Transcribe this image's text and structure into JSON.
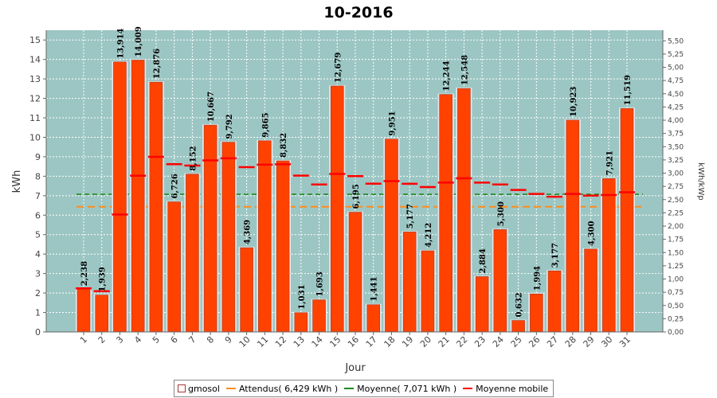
{
  "chart_data": {
    "type": "bar",
    "title": "10-2016",
    "xlabel": "Jour",
    "ylabel": "kWh",
    "y2label": "kWh/kWp",
    "ylim": [
      0,
      15.5
    ],
    "y2lim": [
      0,
      5.7
    ],
    "yticks": [
      "0",
      "1",
      "2",
      "3",
      "4",
      "5",
      "6",
      "7",
      "8",
      "9",
      "10",
      "11",
      "12",
      "13",
      "14",
      "15"
    ],
    "y2ticks": [
      "0,00",
      "0,25",
      "0,50",
      "0,75",
      "1,00",
      "1,25",
      "1,50",
      "1,75",
      "2,00",
      "2,25",
      "2,50",
      "2,75",
      "3,00",
      "3,25",
      "3,50",
      "3,75",
      "4,00",
      "4,25",
      "4,50",
      "4,75",
      "5,00",
      "5,25",
      "5,50"
    ],
    "categories": [
      "1",
      "2",
      "3",
      "4",
      "5",
      "6",
      "7",
      "8",
      "9",
      "10",
      "11",
      "12",
      "13",
      "14",
      "15",
      "16",
      "17",
      "18",
      "19",
      "20",
      "21",
      "22",
      "23",
      "24",
      "25",
      "26",
      "27",
      "28",
      "29",
      "30",
      "31"
    ],
    "series": [
      {
        "name": "gmosol",
        "values": [
          2.238,
          1.939,
          13.914,
          14.009,
          12.876,
          6.726,
          8.152,
          10.667,
          9.792,
          4.369,
          9.865,
          8.832,
          1.031,
          1.693,
          12.679,
          6.195,
          1.441,
          9.951,
          5.177,
          4.212,
          12.244,
          12.548,
          2.884,
          5.3,
          0.632,
          1.994,
          3.177,
          10.923,
          4.3,
          7.921,
          11.519
        ],
        "labels": [
          "2,238",
          "1,939",
          "13,914",
          "14,009",
          "12,876",
          "6,726",
          "8,152",
          "10,667",
          "9,792",
          "4,369",
          "9,865",
          "8,832",
          "1,031",
          "1,693",
          "12,679",
          "6,195",
          "1,441",
          "9,951",
          "5,177",
          "4,212",
          "12,244",
          "12,548",
          "2,884",
          "5,300",
          "0,632",
          "1,994",
          "3,177",
          "10,923",
          "4,300",
          "7,921",
          "11,519"
        ]
      },
      {
        "name": "Moyenne mobile",
        "values": [
          2.238,
          2.089,
          6.03,
          8.025,
          8.995,
          8.617,
          8.55,
          8.815,
          8.923,
          8.467,
          8.593,
          8.613,
          8.03,
          7.577,
          8.117,
          8.004,
          7.618,
          7.748,
          7.613,
          7.443,
          7.672,
          7.893,
          7.675,
          7.574,
          7.296,
          7.092,
          6.947,
          7.089,
          7.006,
          7.036,
          7.179
        ]
      },
      {
        "name": "Attendus( 6,429 kWh )",
        "value": 6.429
      },
      {
        "name": "Moyenne( 7,071 kWh )",
        "value": 7.071
      }
    ],
    "grid": true,
    "legend_position": "bottom"
  },
  "colors": {
    "plot_bg": "#9cc6c3",
    "bar": "#ff4200",
    "bar_edge": "#a33a2a",
    "bar_shadow": "#e8e8e8",
    "moving_avg": "#ff0000",
    "expected": "#ff8c1a",
    "mean": "#1f8a1f"
  },
  "legend": {
    "items": [
      "gmosol",
      "Attendus( 6,429 kWh )",
      "Moyenne( 7,071 kWh )",
      "Moyenne mobile"
    ]
  }
}
